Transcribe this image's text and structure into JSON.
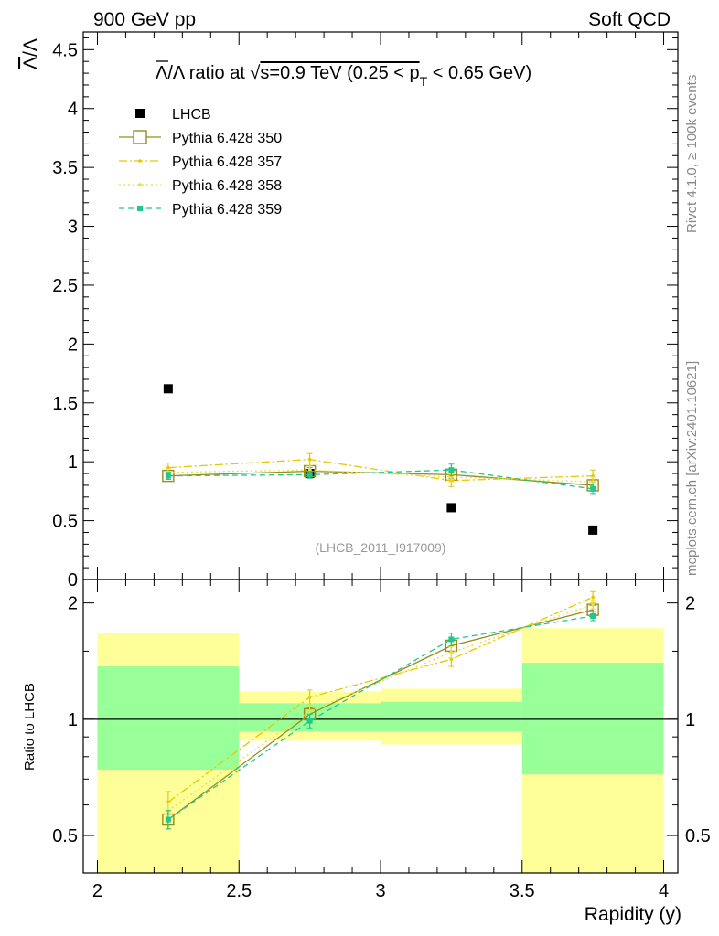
{
  "header": {
    "left": "900 GeV pp",
    "right": "Soft QCD"
  },
  "side_labels": {
    "rivet": "Rivet 4.1.0, ≥ 100k events",
    "mcplots": "mcplots.cern.ch [arXiv:2401.10621]"
  },
  "chart_data": [
    {
      "type": "scatter",
      "title": "Λ̄/Λ ratio at √s=0.9 TeV (0.25 < p_T < 0.65 GeV)",
      "title_parts": {
        "pre": "Λ/Λ ratio at √",
        "mid": "s=0.9 TeV (0.25 < p",
        "sub": "T",
        "post": " < 0.65 GeV)"
      },
      "ylabel": "Λ̄/Λ",
      "ylabel_parts": {
        "bar": "Λ",
        "sep": "/",
        "base": "Λ"
      },
      "xlim": [
        1.95,
        4.05
      ],
      "ylim": [
        0,
        4.65
      ],
      "yticks": [
        {
          "v": 0,
          "label": "0"
        },
        {
          "v": 0.5,
          "label": "0.5"
        },
        {
          "v": 1,
          "label": "1"
        },
        {
          "v": 1.5,
          "label": "1.5"
        },
        {
          "v": 2,
          "label": "2"
        },
        {
          "v": 2.5,
          "label": "2.5"
        },
        {
          "v": 3,
          "label": "3"
        },
        {
          "v": 3.5,
          "label": "3.5"
        },
        {
          "v": 4,
          "label": "4"
        },
        {
          "v": 4.5,
          "label": "4.5"
        }
      ],
      "watermark": "(LHCB_2011_I917009)",
      "x": [
        2.25,
        2.75,
        3.25,
        3.75
      ],
      "series": [
        {
          "name": "LHCB",
          "marker": "filled-square",
          "color": "#000000",
          "values": [
            1.62,
            0.9,
            0.61,
            0.42
          ],
          "errors": [
            0,
            0,
            0,
            0
          ]
        },
        {
          "name": "Pythia 6.428 350",
          "marker": "open-square",
          "line": "solid",
          "color": "#9a8c1c",
          "values": [
            0.88,
            0.92,
            0.89,
            0.8
          ],
          "errors": [
            0.03,
            0.03,
            0.03,
            0.03
          ]
        },
        {
          "name": "Pythia 6.428 357",
          "marker": "small-dot",
          "line": "dashdot",
          "color": "#e6c800",
          "values": [
            0.95,
            1.02,
            0.84,
            0.88
          ],
          "errors": [
            0.04,
            0.05,
            0.05,
            0.05
          ]
        },
        {
          "name": "Pythia 6.428 358",
          "marker": "small-dot",
          "line": "dotted",
          "color": "#e0e040",
          "values": [
            0.91,
            0.93,
            0.87,
            0.83
          ],
          "errors": [
            0.03,
            0.04,
            0.04,
            0.04
          ]
        },
        {
          "name": "Pythia 6.428 359",
          "marker": "filled-square-small",
          "line": "dashed",
          "color": "#1ec88c",
          "values": [
            0.88,
            0.89,
            0.93,
            0.77
          ],
          "errors": [
            0.03,
            0.03,
            0.05,
            0.04
          ]
        }
      ]
    },
    {
      "type": "scatter",
      "title": "",
      "ylabel": "Ratio to LHCB",
      "xlabel": "Rapidity (y)",
      "xlim": [
        1.95,
        4.05
      ],
      "ylim": [
        0.4,
        2.3
      ],
      "yscale": "log",
      "yticks": [
        {
          "v": 0.5,
          "label": "0.5"
        },
        {
          "v": 1,
          "label": "1"
        },
        {
          "v": 2,
          "label": "2"
        }
      ],
      "xticks": [
        {
          "v": 2,
          "label": "2"
        },
        {
          "v": 2.5,
          "label": "2.5"
        },
        {
          "v": 3,
          "label": "3"
        },
        {
          "v": 3.5,
          "label": "3.5"
        },
        {
          "v": 4,
          "label": "4"
        }
      ],
      "bands": [
        {
          "x": [
            2.0,
            2.5
          ],
          "yellow": [
            0.4,
            1.67
          ],
          "green": [
            0.74,
            1.37
          ]
        },
        {
          "x": [
            2.5,
            3.0
          ],
          "yellow": [
            0.88,
            1.18
          ],
          "green": [
            0.93,
            1.1
          ]
        },
        {
          "x": [
            3.0,
            3.5
          ],
          "yellow": [
            0.86,
            1.2
          ],
          "green": [
            0.93,
            1.11
          ]
        },
        {
          "x": [
            3.5,
            4.0
          ],
          "yellow": [
            0.4,
            1.72
          ],
          "green": [
            0.72,
            1.4
          ]
        }
      ],
      "x": [
        2.25,
        2.75,
        3.25,
        3.75
      ],
      "series": [
        {
          "name": "Pythia 6.428 350",
          "values": [
            0.55,
            1.03,
            1.55,
            1.92
          ],
          "errors": [
            0.03,
            0.04,
            0.05,
            0.05
          ]
        },
        {
          "name": "Pythia 6.428 357",
          "values": [
            0.61,
            1.14,
            1.43,
            2.07
          ],
          "errors": [
            0.04,
            0.05,
            0.06,
            0.07
          ]
        },
        {
          "name": "Pythia 6.428 358",
          "values": [
            0.58,
            1.05,
            1.49,
            1.98
          ],
          "errors": [
            0.03,
            0.04,
            0.05,
            0.05
          ]
        },
        {
          "name": "Pythia 6.428 359",
          "values": [
            0.55,
            0.99,
            1.61,
            1.85
          ],
          "errors": [
            0.03,
            0.04,
            0.06,
            0.05
          ]
        }
      ]
    }
  ]
}
